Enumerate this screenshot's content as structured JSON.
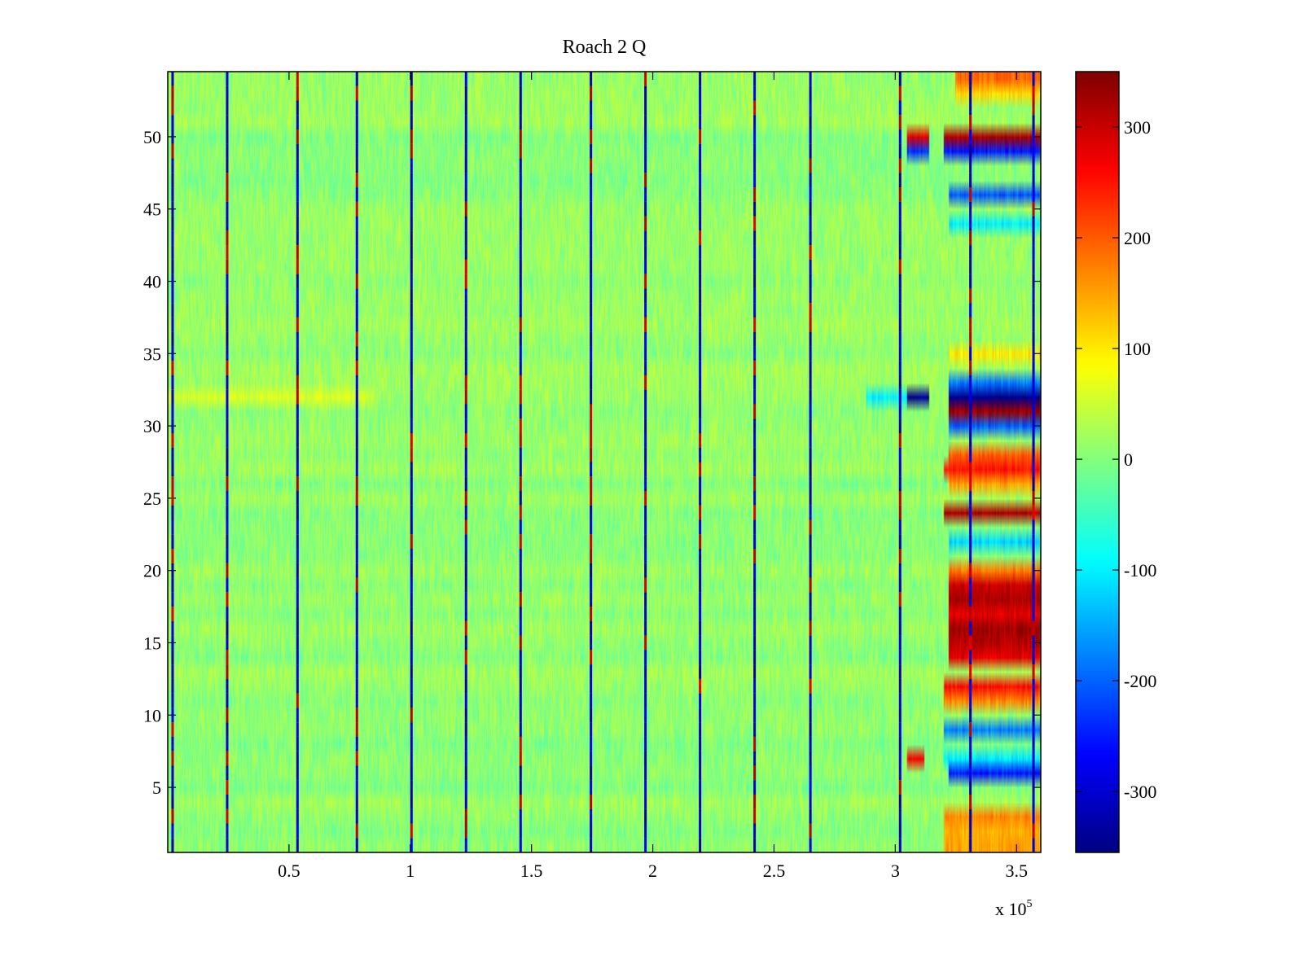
{
  "chart_data": {
    "type": "heatmap",
    "title": "Roach 2 Q",
    "xlabel": "",
    "ylabel": "",
    "x_multiplier_label": "x 10",
    "x_multiplier_exponent": "5",
    "xlim": [
      0,
      3.6
    ],
    "ylim": [
      0.5,
      54.5
    ],
    "x_ticks": [
      {
        "value": 0.5,
        "label": "0.5"
      },
      {
        "value": 1,
        "label": "1"
      },
      {
        "value": 1.5,
        "label": "1.5"
      },
      {
        "value": 2,
        "label": "2"
      },
      {
        "value": 2.5,
        "label": "2.5"
      },
      {
        "value": 3,
        "label": "3"
      },
      {
        "value": 3.5,
        "label": "3.5"
      }
    ],
    "y_ticks": [
      {
        "value": 5,
        "label": "5"
      },
      {
        "value": 10,
        "label": "10"
      },
      {
        "value": 15,
        "label": "15"
      },
      {
        "value": 20,
        "label": "20"
      },
      {
        "value": 25,
        "label": "25"
      },
      {
        "value": 30,
        "label": "30"
      },
      {
        "value": 35,
        "label": "35"
      },
      {
        "value": 40,
        "label": "40"
      },
      {
        "value": 45,
        "label": "45"
      },
      {
        "value": 50,
        "label": "50"
      }
    ],
    "colorbar": {
      "colormap": "jet",
      "clim": [
        -355,
        350
      ],
      "ticks": [
        {
          "value": 300,
          "label": "300"
        },
        {
          "value": 200,
          "label": "200"
        },
        {
          "value": 100,
          "label": "100"
        },
        {
          "value": 0,
          "label": "0"
        },
        {
          "value": -100,
          "label": "-100"
        },
        {
          "value": -200,
          "label": "-200"
        },
        {
          "value": -300,
          "label": "-300"
        }
      ]
    },
    "rows": 54,
    "background_value": 10,
    "background_noise": 30,
    "vertical_lines": [
      {
        "x": 0.02,
        "value": -300
      },
      {
        "x": 0.245,
        "value": -300
      },
      {
        "x": 0.535,
        "value": -300
      },
      {
        "x": 0.78,
        "value": -300
      },
      {
        "x": 1.005,
        "value": -300
      },
      {
        "x": 1.23,
        "value": -300
      },
      {
        "x": 1.455,
        "value": -300
      },
      {
        "x": 1.745,
        "value": -300
      },
      {
        "x": 1.97,
        "value": -300
      },
      {
        "x": 2.195,
        "value": -300
      },
      {
        "x": 2.42,
        "value": -300
      },
      {
        "x": 2.65,
        "value": -300
      },
      {
        "x": 3.02,
        "value": -300
      },
      {
        "x": 3.31,
        "value": -300
      },
      {
        "x": 3.57,
        "value": -300
      }
    ],
    "row_bands": [
      {
        "row": 32,
        "x_start": 0.0,
        "x_end": 0.85,
        "value": 60
      },
      {
        "row": 32,
        "x_start": 2.88,
        "x_end": 3.05,
        "value": -100
      },
      {
        "row": 32,
        "x_start": 3.05,
        "x_end": 3.14,
        "value": -340
      },
      {
        "row": 32,
        "x_start": 3.22,
        "x_end": 3.6,
        "value": -345
      },
      {
        "row": 33,
        "x_start": 3.22,
        "x_end": 3.6,
        "value": -180
      },
      {
        "row": 31,
        "x_start": 3.22,
        "x_end": 3.6,
        "value": 330
      },
      {
        "row": 30,
        "x_start": 3.22,
        "x_end": 3.6,
        "value": -200
      },
      {
        "row": 50,
        "x_start": 3.05,
        "x_end": 3.14,
        "value": 280
      },
      {
        "row": 50,
        "x_start": 3.2,
        "x_end": 3.6,
        "value": 320
      },
      {
        "row": 49,
        "x_start": 3.05,
        "x_end": 3.14,
        "value": -230
      },
      {
        "row": 49,
        "x_start": 3.2,
        "x_end": 3.6,
        "value": -250
      },
      {
        "row": 54,
        "x_start": 3.25,
        "x_end": 3.6,
        "value": 190
      },
      {
        "row": 53,
        "x_start": 3.25,
        "x_end": 3.6,
        "value": 110
      },
      {
        "row": 46,
        "x_start": 3.22,
        "x_end": 3.6,
        "value": -210
      },
      {
        "row": 44,
        "x_start": 3.22,
        "x_end": 3.6,
        "value": -100
      },
      {
        "row": 35,
        "x_start": 3.22,
        "x_end": 3.6,
        "value": 100
      },
      {
        "row": 28,
        "x_start": 3.22,
        "x_end": 3.6,
        "value": 200
      },
      {
        "row": 27,
        "x_start": 3.2,
        "x_end": 3.6,
        "value": 250
      },
      {
        "row": 26,
        "x_start": 3.22,
        "x_end": 3.6,
        "value": 150
      },
      {
        "row": 24,
        "x_start": 3.2,
        "x_end": 3.6,
        "value": 320
      },
      {
        "row": 22,
        "x_start": 3.22,
        "x_end": 3.6,
        "value": -120
      },
      {
        "row": 20,
        "x_start": 3.22,
        "x_end": 3.6,
        "value": 180
      },
      {
        "row": 19,
        "x_start": 3.22,
        "x_end": 3.6,
        "value": 300
      },
      {
        "row": 18,
        "x_start": 3.22,
        "x_end": 3.6,
        "value": 320
      },
      {
        "row": 17,
        "x_start": 3.22,
        "x_end": 3.6,
        "value": 280
      },
      {
        "row": 16,
        "x_start": 3.22,
        "x_end": 3.6,
        "value": 330
      },
      {
        "row": 15,
        "x_start": 3.22,
        "x_end": 3.6,
        "value": 310
      },
      {
        "row": 14,
        "x_start": 3.22,
        "x_end": 3.6,
        "value": 280
      },
      {
        "row": 12,
        "x_start": 3.2,
        "x_end": 3.6,
        "value": 260
      },
      {
        "row": 11,
        "x_start": 3.2,
        "x_end": 3.6,
        "value": 170
      },
      {
        "row": 9,
        "x_start": 3.2,
        "x_end": 3.6,
        "value": -180
      },
      {
        "row": 7,
        "x_start": 3.05,
        "x_end": 3.12,
        "value": 270
      },
      {
        "row": 7,
        "x_start": 3.2,
        "x_end": 3.6,
        "value": -100
      },
      {
        "row": 6,
        "x_start": 3.22,
        "x_end": 3.6,
        "value": -250
      },
      {
        "row": 3,
        "x_start": 3.2,
        "x_end": 3.6,
        "value": 170
      },
      {
        "row": 2,
        "x_start": 3.2,
        "x_end": 3.6,
        "value": 140
      },
      {
        "row": 1,
        "x_start": 3.2,
        "x_end": 3.6,
        "value": 150
      }
    ]
  }
}
